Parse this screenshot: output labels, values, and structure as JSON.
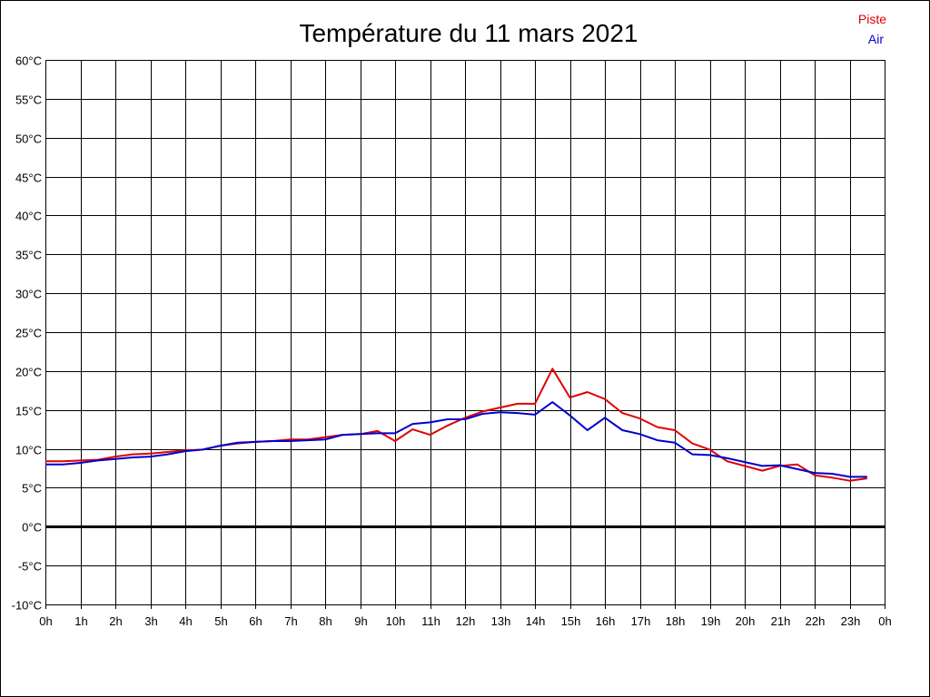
{
  "chart_data": {
    "type": "line",
    "title": "Température du 11 mars 2021",
    "xlim": [
      0,
      24
    ],
    "ylim": [
      -10,
      60
    ],
    "x_ticks": [
      0,
      1,
      2,
      3,
      4,
      5,
      6,
      7,
      8,
      9,
      10,
      11,
      12,
      13,
      14,
      15,
      16,
      17,
      18,
      19,
      20,
      21,
      22,
      23,
      24
    ],
    "x_tick_labels": [
      "0h",
      "1h",
      "2h",
      "3h",
      "4h",
      "5h",
      "6h",
      "7h",
      "8h",
      "9h",
      "10h",
      "11h",
      "12h",
      "13h",
      "14h",
      "15h",
      "16h",
      "17h",
      "18h",
      "19h",
      "20h",
      "21h",
      "22h",
      "23h",
      "0h"
    ],
    "y_ticks": [
      -10,
      -5,
      0,
      5,
      10,
      15,
      20,
      25,
      30,
      35,
      40,
      45,
      50,
      55,
      60
    ],
    "y_tick_labels": [
      "-10°C",
      "-5°C",
      "0°C",
      "5°C",
      "10°C",
      "15°C",
      "20°C",
      "25°C",
      "30°C",
      "35°C",
      "40°C",
      "45°C",
      "50°C",
      "55°C",
      "60°C"
    ],
    "grid": true,
    "zero_line": true,
    "legend_position": "top-right",
    "colors": {
      "grid": "#000000",
      "zero_line": "#000000"
    },
    "x": [
      0,
      0.5,
      1,
      1.5,
      2,
      2.5,
      3,
      3.5,
      4,
      4.5,
      5,
      5.5,
      6,
      6.5,
      7,
      7.5,
      8,
      8.5,
      9,
      9.5,
      10,
      10.5,
      11,
      11.5,
      12,
      12.5,
      13,
      13.5,
      14,
      14.5,
      15,
      15.5,
      16,
      16.5,
      17,
      17.5,
      18,
      18.5,
      19,
      19.5,
      20,
      20.5,
      21,
      21.5,
      22,
      22.5,
      23,
      23.5
    ],
    "series": [
      {
        "name": "Piste",
        "color": "#e00000",
        "values": [
          8.4,
          8.4,
          8.5,
          8.6,
          9.0,
          9.3,
          9.4,
          9.6,
          9.8,
          9.9,
          10.4,
          10.7,
          10.9,
          11.0,
          11.2,
          11.2,
          11.5,
          11.8,
          11.9,
          12.3,
          11.0,
          12.5,
          11.8,
          13.0,
          14.0,
          14.8,
          15.3,
          15.8,
          15.8,
          20.3,
          16.6,
          17.3,
          16.4,
          14.6,
          13.9,
          12.8,
          12.4,
          10.7,
          9.9,
          8.4,
          7.8,
          7.2,
          7.8,
          8.0,
          6.6,
          6.3,
          5.9,
          6.2
        ]
      },
      {
        "name": "Air",
        "color": "#0000cc",
        "values": [
          8.0,
          8.0,
          8.2,
          8.5,
          8.7,
          8.9,
          9.0,
          9.3,
          9.7,
          9.9,
          10.4,
          10.8,
          10.9,
          11.0,
          11.0,
          11.1,
          11.2,
          11.8,
          11.9,
          12.0,
          12.0,
          13.2,
          13.4,
          13.8,
          13.8,
          14.5,
          14.7,
          14.6,
          14.4,
          16.0,
          14.3,
          12.4,
          14.0,
          12.4,
          11.9,
          11.1,
          10.8,
          9.3,
          9.2,
          8.8,
          8.3,
          7.8,
          7.9,
          7.4,
          6.9,
          6.8,
          6.4,
          6.4
        ]
      }
    ]
  }
}
